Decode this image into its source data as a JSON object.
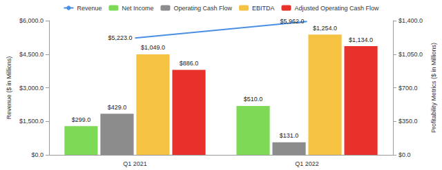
{
  "chart_data": {
    "type": "bar",
    "categories": [
      "Q1 2021",
      "Q1 2022"
    ],
    "ylabel": "Revenue ($ in Millions)",
    "y2label": "Profitability Metrics ($ in Millions)",
    "ylim": [
      0,
      6000
    ],
    "yticks": [
      {
        "value": 0,
        "label": "$0.0"
      },
      {
        "value": 1500,
        "label": "$1,500.0"
      },
      {
        "value": 3000,
        "label": "$3,000.0"
      },
      {
        "value": 4500,
        "label": "$4,500.0"
      },
      {
        "value": 6000,
        "label": "$6,000.0"
      }
    ],
    "y2lim": [
      0,
      1400
    ],
    "y2ticks": [
      {
        "value": 0,
        "label": "$0.0"
      },
      {
        "value": 350,
        "label": "$350.0"
      },
      {
        "value": 700,
        "label": "$700.0"
      },
      {
        "value": 1050,
        "label": "$1,050.0"
      },
      {
        "value": 1400,
        "label": "$1,400.0"
      }
    ],
    "legend": "top",
    "grid": false,
    "data_labels": true,
    "series": [
      {
        "name": "Revenue",
        "type": "line",
        "color": "#4a90e2",
        "values": [
          5223,
          5962
        ],
        "value_labels": [
          "$5,223.0",
          "$5,962.0"
        ]
      },
      {
        "name": "Net Income",
        "type": "bar",
        "color": "#7ed957",
        "axis": "y2",
        "values": [
          299,
          510
        ],
        "value_labels": [
          "$299.0",
          "$510.0"
        ]
      },
      {
        "name": "Operating Cash Flow",
        "type": "bar",
        "color": "#8c8c8c",
        "axis": "y2",
        "values": [
          429,
          131
        ],
        "value_labels": [
          "$429.0",
          "$131.0"
        ]
      },
      {
        "name": "EBITDA",
        "type": "bar",
        "color": "#f5c242",
        "axis": "y2",
        "values": [
          1049,
          1254
        ],
        "value_labels": [
          "$1,049.0",
          "$1,254.0"
        ]
      },
      {
        "name": "Adjusted Operating Cash Flow",
        "type": "bar",
        "color": "#e8312a",
        "axis": "y2",
        "values": [
          886,
          1134
        ],
        "value_labels": [
          "$886.0",
          "$1,134.0"
        ]
      }
    ]
  }
}
